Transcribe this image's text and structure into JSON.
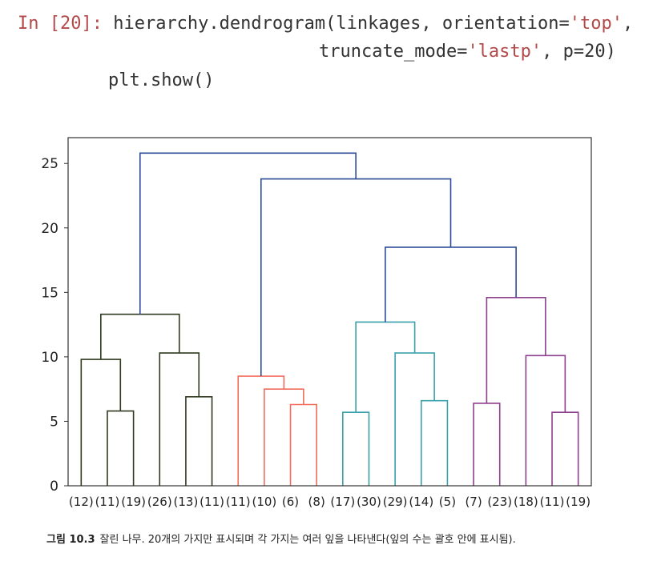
{
  "notebook": {
    "prompt": "In [20]:",
    "code_lines": [
      {
        "pre": " hierarchy.dendrogram(linkages, orientation=",
        "str": "'top'",
        "post": ","
      },
      {
        "pre": "truncate_mode=",
        "str": "'lastp'",
        "post": ", p=20)"
      },
      {
        "pre": "plt.show()",
        "str": "",
        "post": ""
      }
    ]
  },
  "chart_data": {
    "type": "dendrogram",
    "title": "",
    "xlabel": "",
    "ylabel": "",
    "ylim": [
      0,
      27
    ],
    "yticks": [
      0,
      5,
      10,
      15,
      20,
      25
    ],
    "grid": false,
    "leaf_labels": [
      "(12)",
      "(11)",
      "(19)",
      "(26)",
      "(13)",
      "(11)",
      "(11)",
      "(10)",
      "(6)",
      "(8)",
      "(17)",
      "(30)",
      "(29)",
      "(14)",
      "(5)",
      "(7)",
      "(23)",
      "(18)",
      "(11)",
      "(19)"
    ],
    "colors": {
      "cluster1": "#2f3a1f",
      "cluster2": "#f26b5b",
      "cluster3": "#3aa0aa",
      "cluster4": "#8e3f8e",
      "above": "#2b4a9a"
    },
    "links": [
      {
        "left": 1,
        "right": 2,
        "height": 5.8,
        "color": "cluster1"
      },
      {
        "left": 0,
        "right": "m1",
        "height": 9.8,
        "color": "cluster1"
      },
      {
        "left": 4,
        "right": 5,
        "height": 6.9,
        "color": "cluster1"
      },
      {
        "left": 3,
        "right": "m3",
        "height": 10.3,
        "color": "cluster1"
      },
      {
        "left": "m2",
        "right": "m4",
        "height": 13.3,
        "color": "cluster1"
      },
      {
        "left": 8,
        "right": 9,
        "height": 6.3,
        "color": "cluster2"
      },
      {
        "left": 7,
        "right": "m6",
        "height": 7.5,
        "color": "cluster2"
      },
      {
        "left": 6,
        "right": "m7",
        "height": 8.5,
        "color": "cluster2"
      },
      {
        "left": 10,
        "right": 11,
        "height": 5.7,
        "color": "cluster3"
      },
      {
        "left": 13,
        "right": 14,
        "height": 6.6,
        "color": "cluster3"
      },
      {
        "left": 12,
        "right": "m10",
        "height": 10.3,
        "color": "cluster3"
      },
      {
        "left": "m9",
        "right": "m11",
        "height": 12.7,
        "color": "cluster3"
      },
      {
        "left": 15,
        "right": 16,
        "height": 6.4,
        "color": "cluster4"
      },
      {
        "left": 18,
        "right": 19,
        "height": 5.7,
        "color": "cluster4"
      },
      {
        "left": 17,
        "right": "m14",
        "height": 10.1,
        "color": "cluster4"
      },
      {
        "left": "m13",
        "right": "m15",
        "height": 14.6,
        "color": "cluster4"
      },
      {
        "left": "m12",
        "right": "m16",
        "height": 18.5,
        "color": "above"
      },
      {
        "left": "m8",
        "right": "m17",
        "height": 23.8,
        "color": "above"
      },
      {
        "left": "m5",
        "right": "m18",
        "height": 25.8,
        "color": "above"
      }
    ]
  },
  "caption": {
    "label": "그림 10.3",
    "text": "잘린 나무. 20개의 가지만 표시되며 각 가지는 여러 잎을 나타낸다(잎의 수는 괄호 안에 표시됨)."
  }
}
